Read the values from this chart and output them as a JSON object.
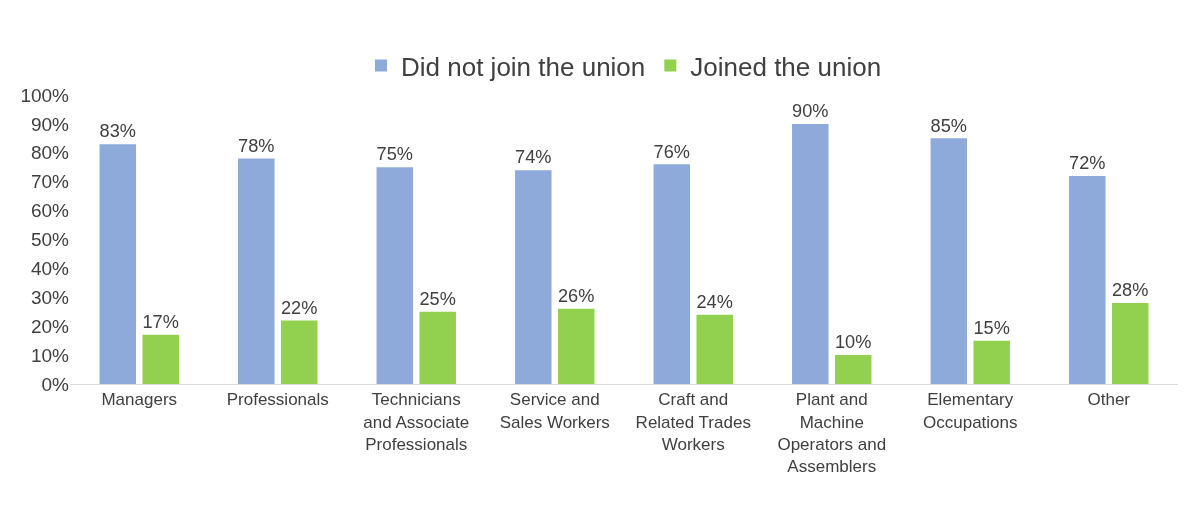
{
  "chart_data": {
    "type": "bar",
    "categories": [
      "Managers",
      "Professionals",
      "Technicians and Associate Professionals",
      "Service and Sales Workers",
      "Craft and Related Trades Workers",
      "Plant and Machine Operators and Assemblers",
      "Elementary Occupations",
      "Other"
    ],
    "series": [
      {
        "name": "Did not join the union",
        "color": "#8eaadb",
        "values": [
          83,
          78,
          75,
          74,
          76,
          90,
          85,
          72
        ],
        "value_labels": [
          "83%",
          "78%",
          "75%",
          "74%",
          "76%",
          "90%",
          "85%",
          "72%"
        ]
      },
      {
        "name": "Joined the union",
        "color": "#92d050",
        "values": [
          17,
          22,
          25,
          26,
          24,
          10,
          15,
          28
        ],
        "value_labels": [
          "17%",
          "22%",
          "25%",
          "26%",
          "24%",
          "10%",
          "15%",
          "28%"
        ]
      }
    ],
    "ylim": [
      0,
      100
    ],
    "yticks": [
      {
        "value": 0,
        "label": "0%"
      },
      {
        "value": 10,
        "label": "10%"
      },
      {
        "value": 20,
        "label": "20%"
      },
      {
        "value": 30,
        "label": "30%"
      },
      {
        "value": 40,
        "label": "40%"
      },
      {
        "value": 50,
        "label": "50%"
      },
      {
        "value": 60,
        "label": "60%"
      },
      {
        "value": 70,
        "label": "70%"
      },
      {
        "value": 80,
        "label": "80%"
      },
      {
        "value": 90,
        "label": "90%"
      },
      {
        "value": 100,
        "label": "100%"
      }
    ],
    "legend": "top",
    "grid": false
  }
}
